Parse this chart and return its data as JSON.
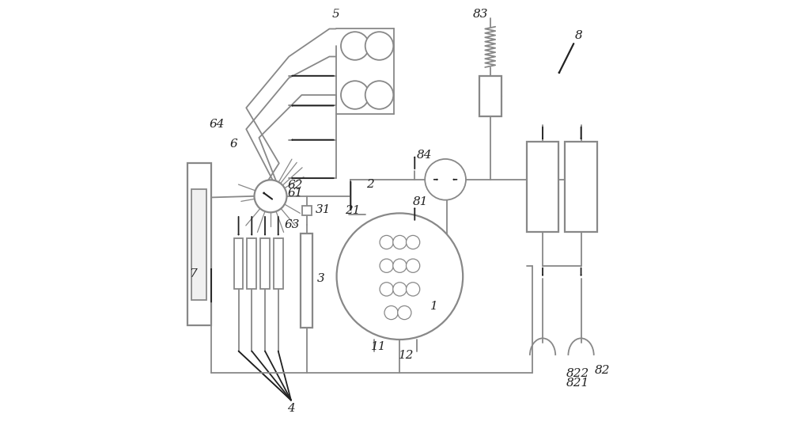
{
  "bg": "#ffffff",
  "lc": "#888888",
  "dc": "#222222",
  "fs": 11,
  "lw": 1.3,
  "lw2": 1.6
}
